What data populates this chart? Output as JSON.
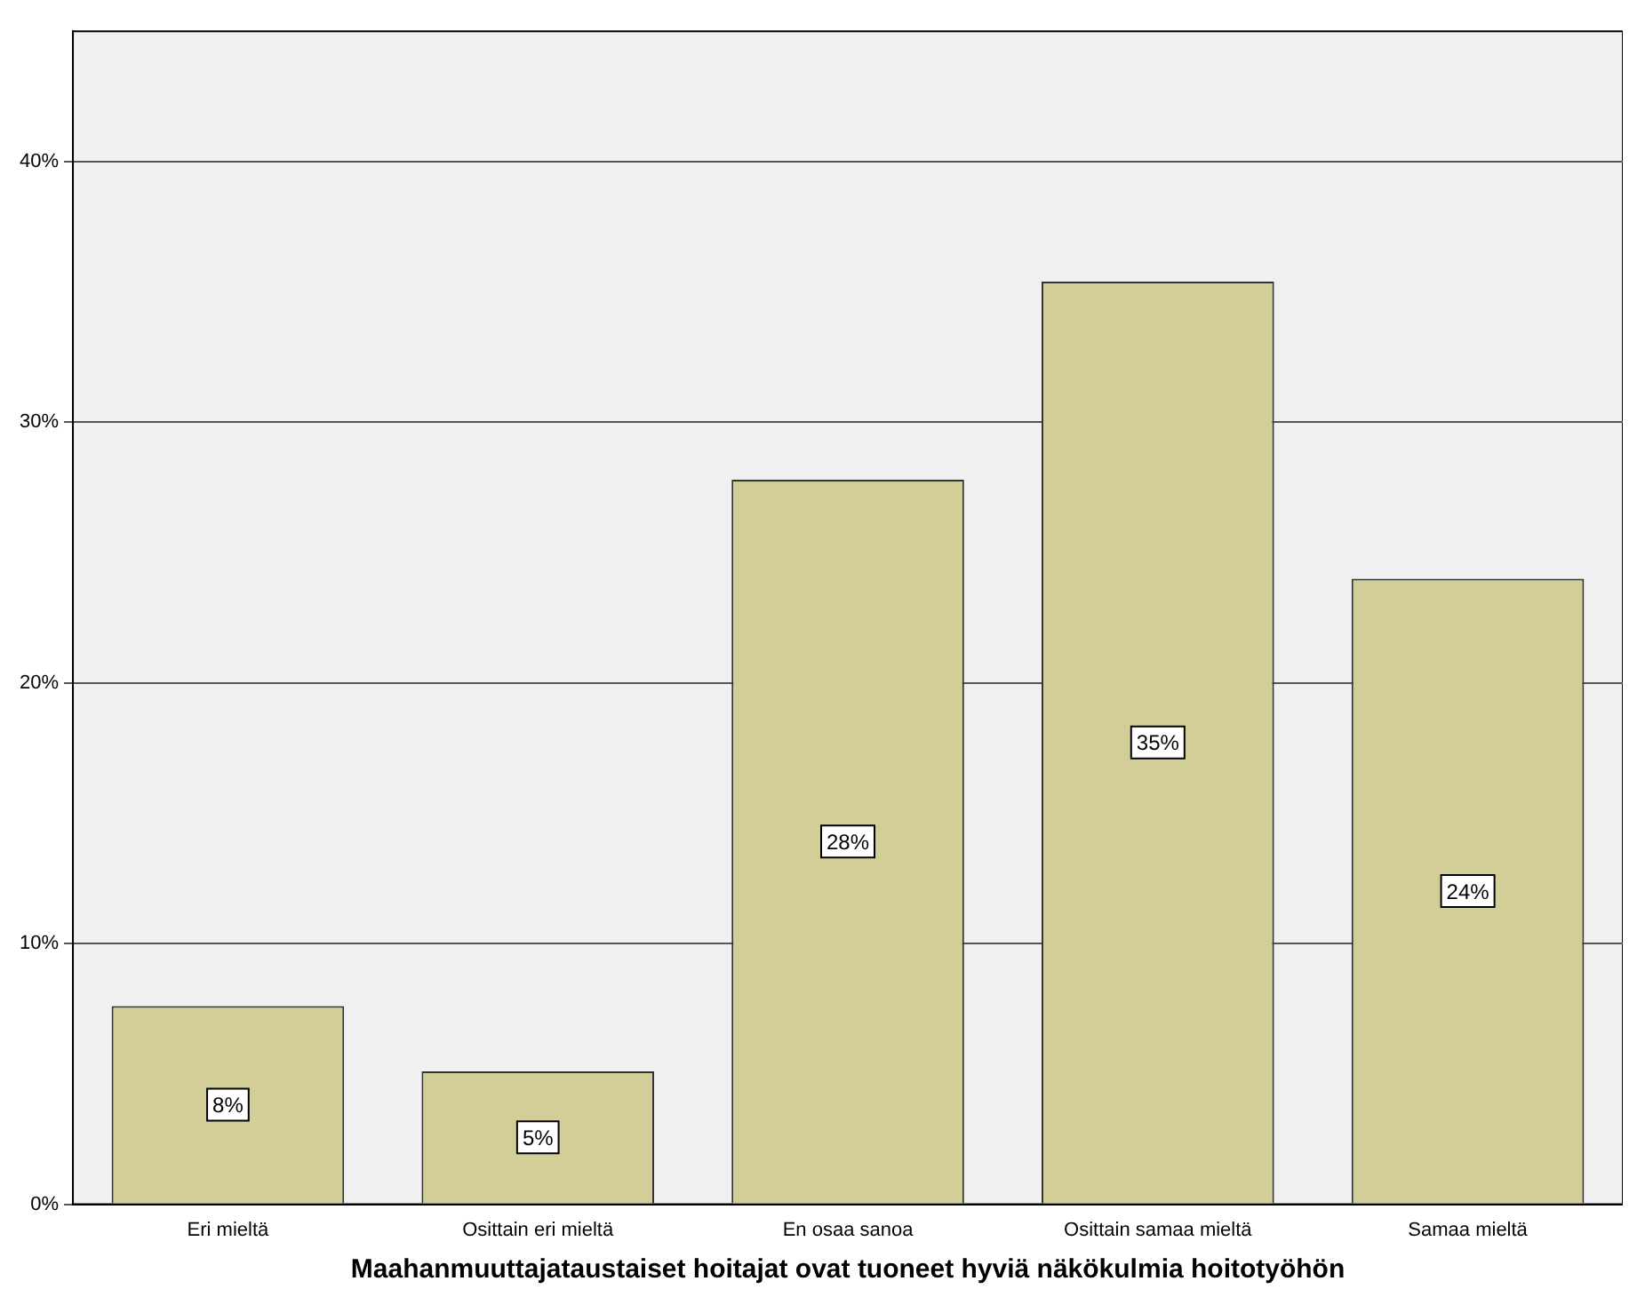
{
  "chart_data": {
    "type": "bar",
    "xlabel": "Maahanmuuttajataustaiset hoitajat ovat tuoneet hyviä näkökulmia hoitotyöhön",
    "categories": [
      "Eri mieltä",
      "Osittain eri mieltä",
      "En osaa sanoa",
      "Osittain samaa mieltä",
      "Samaa mieltä"
    ],
    "values": [
      7.6,
      5.1,
      27.8,
      35.4,
      24.0
    ],
    "value_labels": [
      "8%",
      "5%",
      "28%",
      "35%",
      "24%"
    ],
    "color": "#d3ce97",
    "ylim": [
      0,
      45
    ],
    "yticks": [
      {
        "value": 0,
        "label": "0%"
      },
      {
        "value": 10,
        "label": "10%"
      },
      {
        "value": 20,
        "label": "20%"
      },
      {
        "value": 30,
        "label": "30%"
      },
      {
        "value": 40,
        "label": "40%"
      }
    ],
    "grid": "y"
  }
}
